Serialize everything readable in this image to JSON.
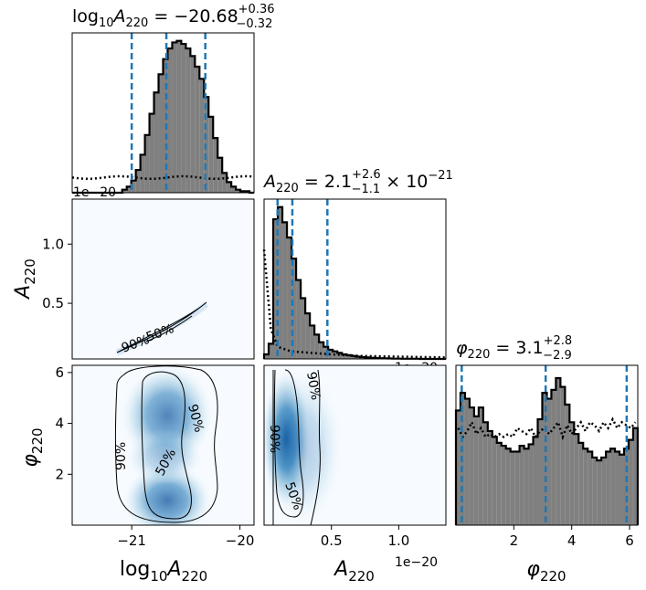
{
  "colors": {
    "hist_fill": "#808080",
    "hist_edge": "#000000",
    "quantile_line": "#1f77b4",
    "density_light": "#f7fbff",
    "density_dark": "#08519c"
  },
  "chart_data": [
    {
      "panel": "hist_log10A220",
      "type": "bar",
      "title": "log10 A220 = -20.68 +0.36 -0.32",
      "title_parts": {
        "base": "log",
        "sub1": "10",
        "sym": "A",
        "sub2": "220",
        "value": " = −20.68",
        "plus": "+0.36",
        "minus": "−0.32"
      },
      "corner_label": "1e−20",
      "xlim": [
        -21.55,
        -19.87
      ],
      "quantiles": [
        -21.0,
        -20.68,
        -20.32
      ],
      "bin_edges_start": -21.55,
      "bin_width": 0.042,
      "counts": [
        0,
        0,
        0,
        0,
        0,
        0,
        0,
        0,
        0,
        0,
        0,
        0.02,
        0.04,
        0.08,
        0.15,
        0.25,
        0.38,
        0.52,
        0.66,
        0.78,
        0.88,
        0.95,
        0.99,
        1.0,
        0.98,
        0.95,
        0.9,
        0.83,
        0.75,
        0.63,
        0.5,
        0.36,
        0.23,
        0.13,
        0.07,
        0.04,
        0.02,
        0.01,
        0.01,
        0.0
      ],
      "prior_level": 0.1
    },
    {
      "panel": "hist_A220",
      "type": "bar",
      "title": "A220 = 2.1 +2.6 -1.1 x 10^-21",
      "title_parts": {
        "sym": "A",
        "sub": "220",
        "value": " = 2.1",
        "plus": "+2.6",
        "minus": "−1.1",
        "times": " × 10",
        "exp": "−21"
      },
      "corner_label": "1e−20",
      "xlim": [
        0.0,
        1.35
      ],
      "quantiles": [
        0.1,
        0.21,
        0.47
      ],
      "bin_edges_start": 0.0,
      "bin_width": 0.034,
      "counts": [
        0.03,
        0.1,
        0.92,
        1.0,
        0.9,
        0.8,
        0.66,
        0.52,
        0.4,
        0.3,
        0.22,
        0.16,
        0.11,
        0.08,
        0.06,
        0.05,
        0.04,
        0.03,
        0.025,
        0.02,
        0.015,
        0.012,
        0.01,
        0.008,
        0.006,
        0.005,
        0.004,
        0.003,
        0.002,
        0.002,
        0.001,
        0.001,
        0.001,
        0.001,
        0.0,
        0.0,
        0.0,
        0.0,
        0.0,
        0.0
      ],
      "prior_x": [
        0.0,
        0.05,
        0.1,
        0.2,
        0.35,
        0.5,
        0.7,
        1.0,
        1.35
      ],
      "prior_y": [
        0.72,
        0.2,
        0.08,
        0.05,
        0.04,
        0.03,
        0.02,
        0.015,
        0.01
      ]
    },
    {
      "panel": "hist_phi220",
      "type": "bar",
      "title": "phi220 = 3.1 +2.8 -2.9",
      "title_parts": {
        "sym": "φ",
        "sub": "220",
        "value": " = 3.1",
        "plus": "+2.8",
        "minus": "−2.9"
      },
      "xlim": [
        0.0,
        6.283
      ],
      "xticks": [
        2,
        4,
        6
      ],
      "quantiles": [
        0.2,
        3.1,
        5.9
      ],
      "bin_edges_start": 0.0,
      "bin_width": 0.157,
      "counts": [
        0.78,
        0.9,
        0.86,
        0.8,
        0.74,
        0.8,
        0.7,
        0.64,
        0.6,
        0.56,
        0.54,
        0.52,
        0.5,
        0.5,
        0.54,
        0.52,
        0.55,
        0.6,
        0.72,
        0.9,
        0.86,
        0.92,
        1.0,
        0.94,
        0.82,
        0.7,
        0.62,
        0.56,
        0.52,
        0.5,
        0.46,
        0.44,
        0.46,
        0.5,
        0.52,
        0.5,
        0.48,
        0.52,
        0.58,
        0.66
      ],
      "prior_y": [
        0.66,
        0.6,
        0.64,
        0.7,
        0.62,
        0.66,
        0.6,
        0.62,
        0.6,
        0.62,
        0.6,
        0.62,
        0.6,
        0.66,
        0.64,
        0.62,
        0.66,
        0.6,
        0.64,
        0.66,
        0.62,
        0.66,
        0.7,
        0.6,
        0.68,
        0.62,
        0.66,
        0.7,
        0.64,
        0.7,
        0.68,
        0.64,
        0.7,
        0.66,
        0.72,
        0.66,
        0.7,
        0.68,
        0.66,
        0.7
      ]
    },
    {
      "panel": "joint_log10A220_A220",
      "type": "heatmap",
      "xlim": [
        -21.55,
        -19.87
      ],
      "ylim": [
        0.03,
        1.38
      ],
      "yticks": [
        0.5,
        1.0
      ],
      "ylabel": "A220",
      "contour_labels": [
        "90%",
        "50%"
      ]
    },
    {
      "panel": "joint_log10A220_phi220",
      "type": "heatmap",
      "xlim": [
        -21.55,
        -19.87
      ],
      "ylim": [
        0.0,
        6.283
      ],
      "xticks": [
        -21,
        -20
      ],
      "yticks": [
        2,
        4,
        6
      ],
      "xlabel": "log10 A220",
      "ylabel": "phi220",
      "contour_labels": [
        "90%",
        "50%",
        "90%"
      ]
    },
    {
      "panel": "joint_A220_phi220",
      "type": "heatmap",
      "xlim": [
        0.0,
        1.35
      ],
      "ylim": [
        0.0,
        6.283
      ],
      "xticks": [
        0.5,
        1.0
      ],
      "xlabel": "A220",
      "corner_label": "1e−20",
      "contour_labels": [
        "90%",
        "50%",
        "90%"
      ]
    }
  ],
  "tick_labels": {
    "x_log": [
      "−21",
      "−20"
    ],
    "x_amp": [
      "0.5",
      "1.0"
    ],
    "x_phi": [
      "2",
      "4",
      "6"
    ],
    "y_amp": [
      "0.5",
      "1.0"
    ],
    "y_phi": [
      "2",
      "4",
      "6"
    ]
  },
  "axis_labels": {
    "log10A": {
      "base": "log",
      "sub1": "10",
      "sym": "A",
      "sub2": "220"
    },
    "A": {
      "sym": "A",
      "sub": "220"
    },
    "phi": {
      "sym": "φ",
      "sub": "220"
    }
  },
  "offset_label": "1e−20",
  "contour_text": {
    "c90": "90%",
    "c50": "50%"
  }
}
